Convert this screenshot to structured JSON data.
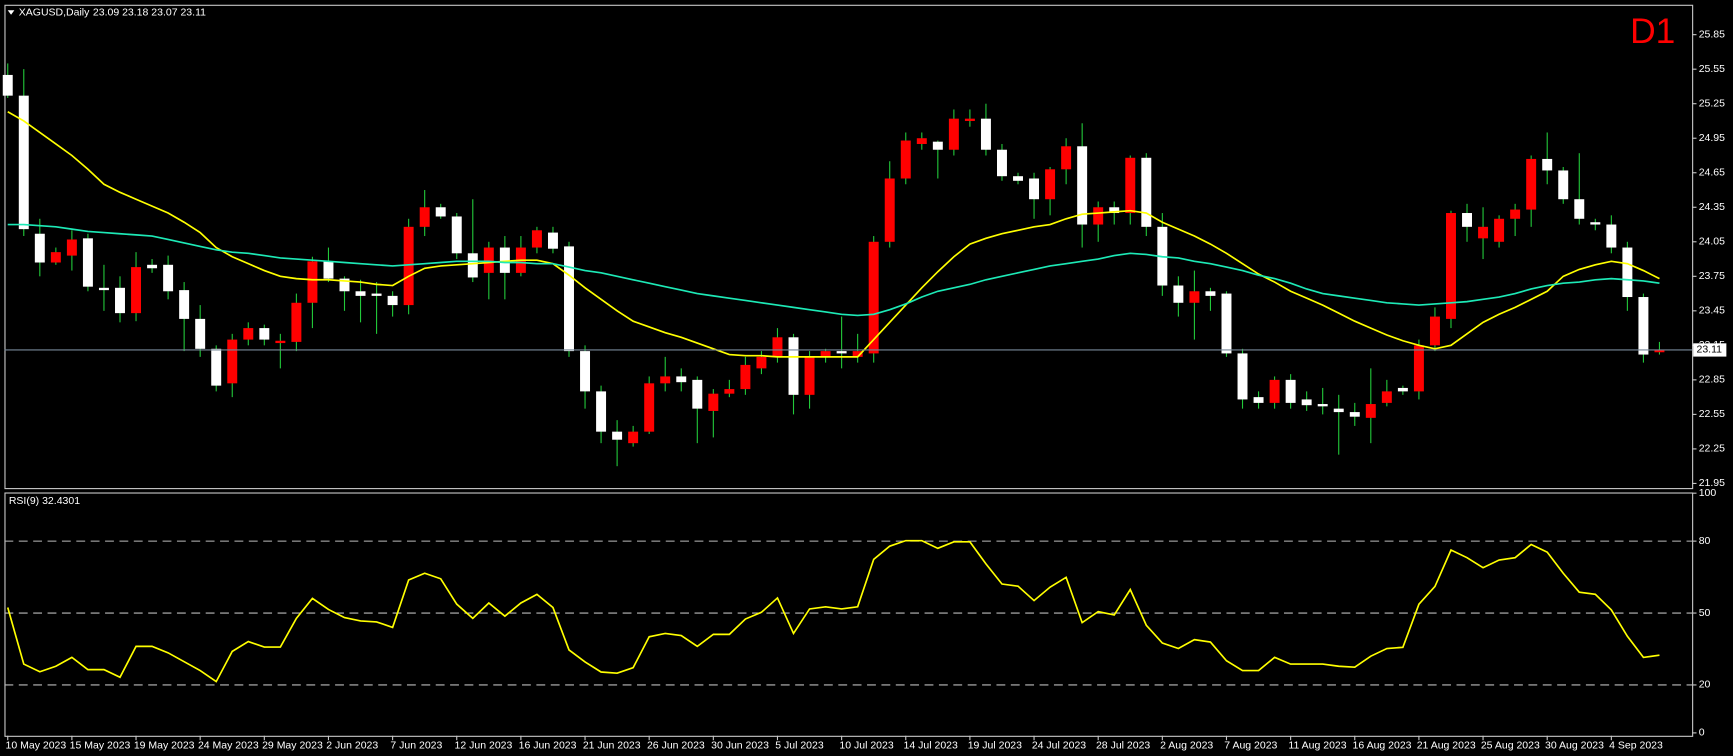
{
  "chart_data": [
    {
      "type": "candlestick",
      "title": "XAGUSD,Daily",
      "subtitle": "23.09 23.18 23.07 23.11",
      "annotation": "D1",
      "annotation_color": "#ff0000",
      "up_color": "#ff0000",
      "down_color": "#ffffff",
      "wick_color": "#22c93a",
      "open": [
        25.5,
        25.32,
        24.12,
        23.87,
        23.93,
        24.08,
        23.65,
        23.65,
        23.43,
        23.85,
        23.85,
        23.63,
        23.38,
        23.12,
        22.82,
        23.2,
        23.3,
        23.17,
        23.18,
        23.52,
        23.88,
        23.73,
        23.62,
        23.6,
        23.58,
        23.5,
        24.18,
        24.35,
        24.27,
        23.95,
        23.78,
        24.0,
        23.78,
        24.0,
        24.13,
        24.01,
        23.1,
        22.75,
        22.4,
        22.3,
        22.4,
        22.82,
        22.88,
        22.85,
        22.58,
        22.73,
        22.77,
        22.95,
        23.05,
        23.22,
        22.72,
        23.05,
        23.1,
        23.05,
        23.08,
        24.05,
        24.6,
        24.9,
        24.92,
        24.85,
        25.1,
        25.12,
        24.85,
        24.62,
        24.6,
        24.42,
        24.68,
        24.88,
        24.2,
        24.35,
        24.3,
        24.78,
        24.18,
        23.67,
        23.52,
        23.62,
        23.6,
        23.08,
        22.7,
        22.65,
        22.85,
        22.68,
        22.64,
        22.6,
        22.57,
        22.52,
        22.65,
        22.78,
        22.75,
        23.15,
        23.38,
        24.3,
        24.08,
        24.05,
        24.25,
        24.33,
        24.77,
        24.67,
        24.42,
        24.22,
        24.2,
        24.0,
        23.57,
        23.09
      ],
      "high": [
        25.6,
        25.55,
        24.25,
        24.0,
        24.15,
        24.12,
        23.85,
        23.75,
        23.96,
        23.9,
        23.93,
        23.7,
        23.5,
        23.15,
        23.25,
        23.35,
        23.33,
        23.25,
        23.6,
        23.92,
        24.0,
        23.75,
        23.72,
        23.7,
        23.62,
        24.25,
        24.5,
        24.38,
        24.3,
        24.42,
        24.05,
        24.1,
        24.1,
        24.18,
        24.18,
        24.05,
        23.15,
        22.8,
        22.5,
        22.45,
        22.88,
        23.05,
        22.95,
        22.88,
        22.77,
        22.85,
        23.05,
        23.1,
        23.3,
        23.25,
        23.1,
        23.12,
        23.4,
        23.25,
        24.1,
        24.75,
        25.0,
        25.0,
        24.93,
        25.2,
        25.2,
        25.25,
        24.9,
        24.65,
        24.65,
        24.7,
        24.95,
        25.08,
        24.4,
        24.4,
        24.8,
        24.82,
        24.3,
        23.75,
        23.8,
        23.65,
        23.62,
        23.12,
        22.75,
        22.88,
        22.9,
        22.75,
        22.78,
        22.72,
        22.65,
        22.95,
        22.85,
        22.8,
        23.2,
        23.48,
        24.32,
        24.38,
        24.35,
        24.28,
        24.38,
        24.8,
        25.0,
        24.7,
        24.82,
        24.25,
        24.28,
        24.05,
        23.6,
        23.18
      ],
      "low": [
        25.3,
        24.1,
        23.75,
        23.85,
        23.8,
        23.62,
        23.45,
        23.35,
        23.36,
        23.78,
        23.55,
        23.1,
        23.05,
        22.75,
        22.7,
        23.15,
        23.15,
        22.95,
        23.1,
        23.3,
        23.7,
        23.45,
        23.35,
        23.25,
        23.4,
        23.42,
        24.1,
        24.25,
        23.9,
        23.7,
        23.55,
        23.55,
        23.75,
        23.95,
        23.95,
        23.05,
        22.6,
        22.3,
        22.1,
        22.27,
        22.38,
        22.75,
        22.75,
        22.3,
        22.35,
        22.7,
        22.72,
        22.9,
        23.0,
        22.55,
        22.6,
        23.0,
        22.95,
        23.0,
        23.0,
        24.0,
        24.55,
        24.85,
        24.6,
        24.8,
        25.05,
        24.8,
        24.58,
        24.55,
        24.25,
        24.28,
        24.55,
        24.0,
        24.05,
        24.2,
        24.2,
        24.1,
        23.58,
        23.4,
        23.2,
        23.45,
        23.05,
        22.6,
        22.6,
        22.6,
        22.6,
        22.58,
        22.55,
        22.2,
        22.45,
        22.3,
        22.62,
        22.72,
        22.68,
        23.1,
        23.3,
        24.05,
        23.9,
        24.0,
        24.1,
        24.18,
        24.55,
        24.38,
        24.2,
        24.15,
        23.95,
        23.45,
        23.0,
        23.07
      ],
      "close": [
        25.32,
        24.16,
        23.87,
        23.96,
        24.07,
        23.66,
        23.63,
        23.43,
        23.83,
        23.82,
        23.62,
        23.38,
        23.12,
        22.8,
        23.2,
        23.3,
        23.2,
        23.19,
        23.52,
        23.88,
        23.73,
        23.62,
        23.58,
        23.58,
        23.5,
        24.18,
        24.35,
        24.27,
        23.95,
        23.74,
        24.0,
        23.78,
        24.0,
        24.15,
        23.99,
        23.1,
        22.75,
        22.4,
        22.33,
        22.4,
        22.82,
        22.88,
        22.83,
        22.6,
        22.73,
        22.77,
        22.98,
        23.05,
        23.22,
        22.72,
        23.05,
        23.1,
        23.08,
        23.1,
        24.05,
        24.6,
        24.93,
        24.95,
        24.85,
        25.12,
        25.12,
        24.85,
        24.62,
        24.58,
        24.42,
        24.68,
        24.88,
        24.2,
        24.35,
        24.3,
        24.78,
        24.18,
        23.67,
        23.52,
        23.62,
        23.58,
        23.08,
        22.68,
        22.65,
        22.85,
        22.65,
        22.63,
        22.62,
        22.57,
        22.53,
        22.64,
        22.75,
        22.75,
        23.15,
        23.4,
        24.3,
        24.18,
        24.18,
        24.25,
        24.33,
        24.77,
        24.67,
        24.42,
        24.25,
        24.2,
        24.0,
        23.57,
        23.07,
        23.11
      ],
      "series": [
        {
          "color": "#ffff00",
          "values": [
            25.18,
            25.1,
            25.0,
            24.9,
            24.8,
            24.68,
            24.55,
            24.48,
            24.42,
            24.36,
            24.3,
            24.22,
            24.13,
            24.0,
            23.92,
            23.86,
            23.8,
            23.75,
            23.73,
            23.72,
            23.72,
            23.71,
            23.7,
            23.68,
            23.67,
            23.75,
            23.82,
            23.84,
            23.85,
            23.86,
            23.87,
            23.88,
            23.89,
            23.89,
            23.86,
            23.76,
            23.65,
            23.55,
            23.45,
            23.36,
            23.31,
            23.26,
            23.22,
            23.17,
            23.12,
            23.07,
            23.06,
            23.06,
            23.05,
            23.05,
            23.05,
            23.05,
            23.05,
            23.05,
            23.2,
            23.35,
            23.5,
            23.65,
            23.79,
            23.92,
            24.03,
            24.08,
            24.12,
            24.15,
            24.18,
            24.2,
            24.25,
            24.29,
            24.3,
            24.31,
            24.32,
            24.3,
            24.22,
            24.16,
            24.1,
            24.03,
            23.95,
            23.86,
            23.77,
            23.7,
            23.62,
            23.56,
            23.5,
            23.43,
            23.36,
            23.3,
            23.24,
            23.19,
            23.15,
            23.12,
            23.15,
            23.25,
            23.35,
            23.42,
            23.48,
            23.55,
            23.62,
            23.75,
            23.81,
            23.85,
            23.88,
            23.86,
            23.8,
            23.73
          ]
        },
        {
          "color": "#1de9b6",
          "values": [
            24.2,
            24.2,
            24.19,
            24.18,
            24.16,
            24.14,
            24.13,
            24.12,
            24.11,
            24.1,
            24.07,
            24.04,
            24.01,
            23.98,
            23.96,
            23.95,
            23.93,
            23.91,
            23.9,
            23.89,
            23.88,
            23.87,
            23.86,
            23.85,
            23.84,
            23.85,
            23.86,
            23.87,
            23.88,
            23.88,
            23.88,
            23.87,
            23.87,
            23.86,
            23.86,
            23.83,
            23.8,
            23.78,
            23.75,
            23.72,
            23.69,
            23.66,
            23.63,
            23.6,
            23.58,
            23.56,
            23.54,
            23.52,
            23.5,
            23.48,
            23.46,
            23.44,
            23.42,
            23.41,
            23.42,
            23.46,
            23.51,
            23.57,
            23.62,
            23.65,
            23.68,
            23.72,
            23.75,
            23.78,
            23.81,
            23.84,
            23.86,
            23.88,
            23.9,
            23.93,
            23.95,
            23.94,
            23.92,
            23.91,
            23.88,
            23.86,
            23.83,
            23.8,
            23.76,
            23.73,
            23.69,
            23.64,
            23.6,
            23.58,
            23.56,
            23.54,
            23.52,
            23.51,
            23.5,
            23.51,
            23.52,
            23.53,
            23.55,
            23.57,
            23.6,
            23.64,
            23.67,
            23.69,
            23.7,
            23.72,
            23.73,
            23.72,
            23.71,
            23.69
          ]
        }
      ],
      "current_price": 23.11,
      "current_price_color": "#778899",
      "ylim": [
        21.91,
        26.11
      ],
      "yticks": [
        25.85,
        25.55,
        25.25,
        24.95,
        24.65,
        24.35,
        24.05,
        23.75,
        23.45,
        23.15,
        22.85,
        22.55,
        22.25,
        21.95
      ]
    },
    {
      "type": "line",
      "title": "RSI(9) 32.4301",
      "categories": [
        "10 May 2023",
        null,
        null,
        null,
        "15 May 2023",
        null,
        null,
        null,
        "19 May 2023",
        null,
        null,
        null,
        "24 May 2023",
        null,
        null,
        null,
        "29 May 2023",
        null,
        null,
        null,
        "2 Jun 2023",
        null,
        null,
        null,
        "7 Jun 2023",
        null,
        null,
        null,
        "12 Jun 2023",
        null,
        null,
        null,
        "16 Jun 2023",
        null,
        null,
        null,
        "21 Jun 2023",
        null,
        null,
        null,
        "26 Jun 2023",
        null,
        null,
        null,
        "30 Jun 2023",
        null,
        null,
        null,
        "5 Jul 2023",
        null,
        null,
        null,
        "10 Jul 2023",
        null,
        null,
        null,
        "14 Jul 2023",
        null,
        null,
        null,
        "19 Jul 2023",
        null,
        null,
        null,
        "24 Jul 2023",
        null,
        null,
        null,
        "28 Jul 2023",
        null,
        null,
        null,
        "2 Aug 2023",
        null,
        null,
        null,
        "7 Aug 2023",
        null,
        null,
        null,
        "11 Aug 2023",
        null,
        null,
        null,
        "16 Aug 2023",
        null,
        null,
        null,
        "21 Aug 2023",
        null,
        null,
        null,
        "25 Aug 2023",
        null,
        null,
        null,
        "30 Aug 2023",
        null,
        null,
        null,
        "4 Sep 2023",
        null,
        null,
        null
      ],
      "series": [
        {
          "color": "#ffff00",
          "values": [
            52.3,
            28.7,
            25.5,
            27.8,
            31.5,
            26.4,
            26.4,
            23.2,
            36.1,
            36.1,
            33.4,
            29.7,
            26.0,
            21.4,
            34.0,
            38.1,
            35.8,
            35.8,
            47.8,
            56.1,
            51.5,
            48.1,
            46.7,
            46.3,
            44.0,
            63.8,
            66.6,
            64.3,
            53.7,
            47.8,
            54.2,
            48.7,
            54.2,
            57.8,
            52.3,
            34.6,
            29.6,
            25.4,
            24.9,
            27.2,
            40.1,
            41.5,
            40.6,
            36.1,
            41.1,
            41.1,
            47.5,
            50.3,
            56.3,
            41.5,
            51.7,
            52.6,
            51.7,
            52.6,
            72.4,
            77.9,
            80.2,
            80.2,
            77.0,
            79.7,
            79.7,
            70.5,
            62.1,
            61.2,
            55.2,
            60.8,
            64.9,
            46.0,
            50.6,
            49.2,
            59.8,
            44.9,
            37.5,
            35.2,
            38.9,
            37.9,
            30.1,
            26.0,
            26.0,
            31.5,
            28.7,
            28.7,
            28.7,
            27.8,
            27.4,
            32.0,
            35.2,
            35.7,
            53.7,
            61.1,
            76.3,
            73.1,
            68.9,
            72.1,
            73.1,
            78.6,
            75.4,
            66.6,
            58.7,
            57.8,
            51.3,
            40.3,
            31.5,
            32.4
          ]
        }
      ],
      "levels": [
        20,
        50,
        80
      ],
      "ylim": [
        -1.2,
        100.3
      ],
      "yticks": [
        0,
        20,
        50,
        80,
        100
      ]
    }
  ]
}
